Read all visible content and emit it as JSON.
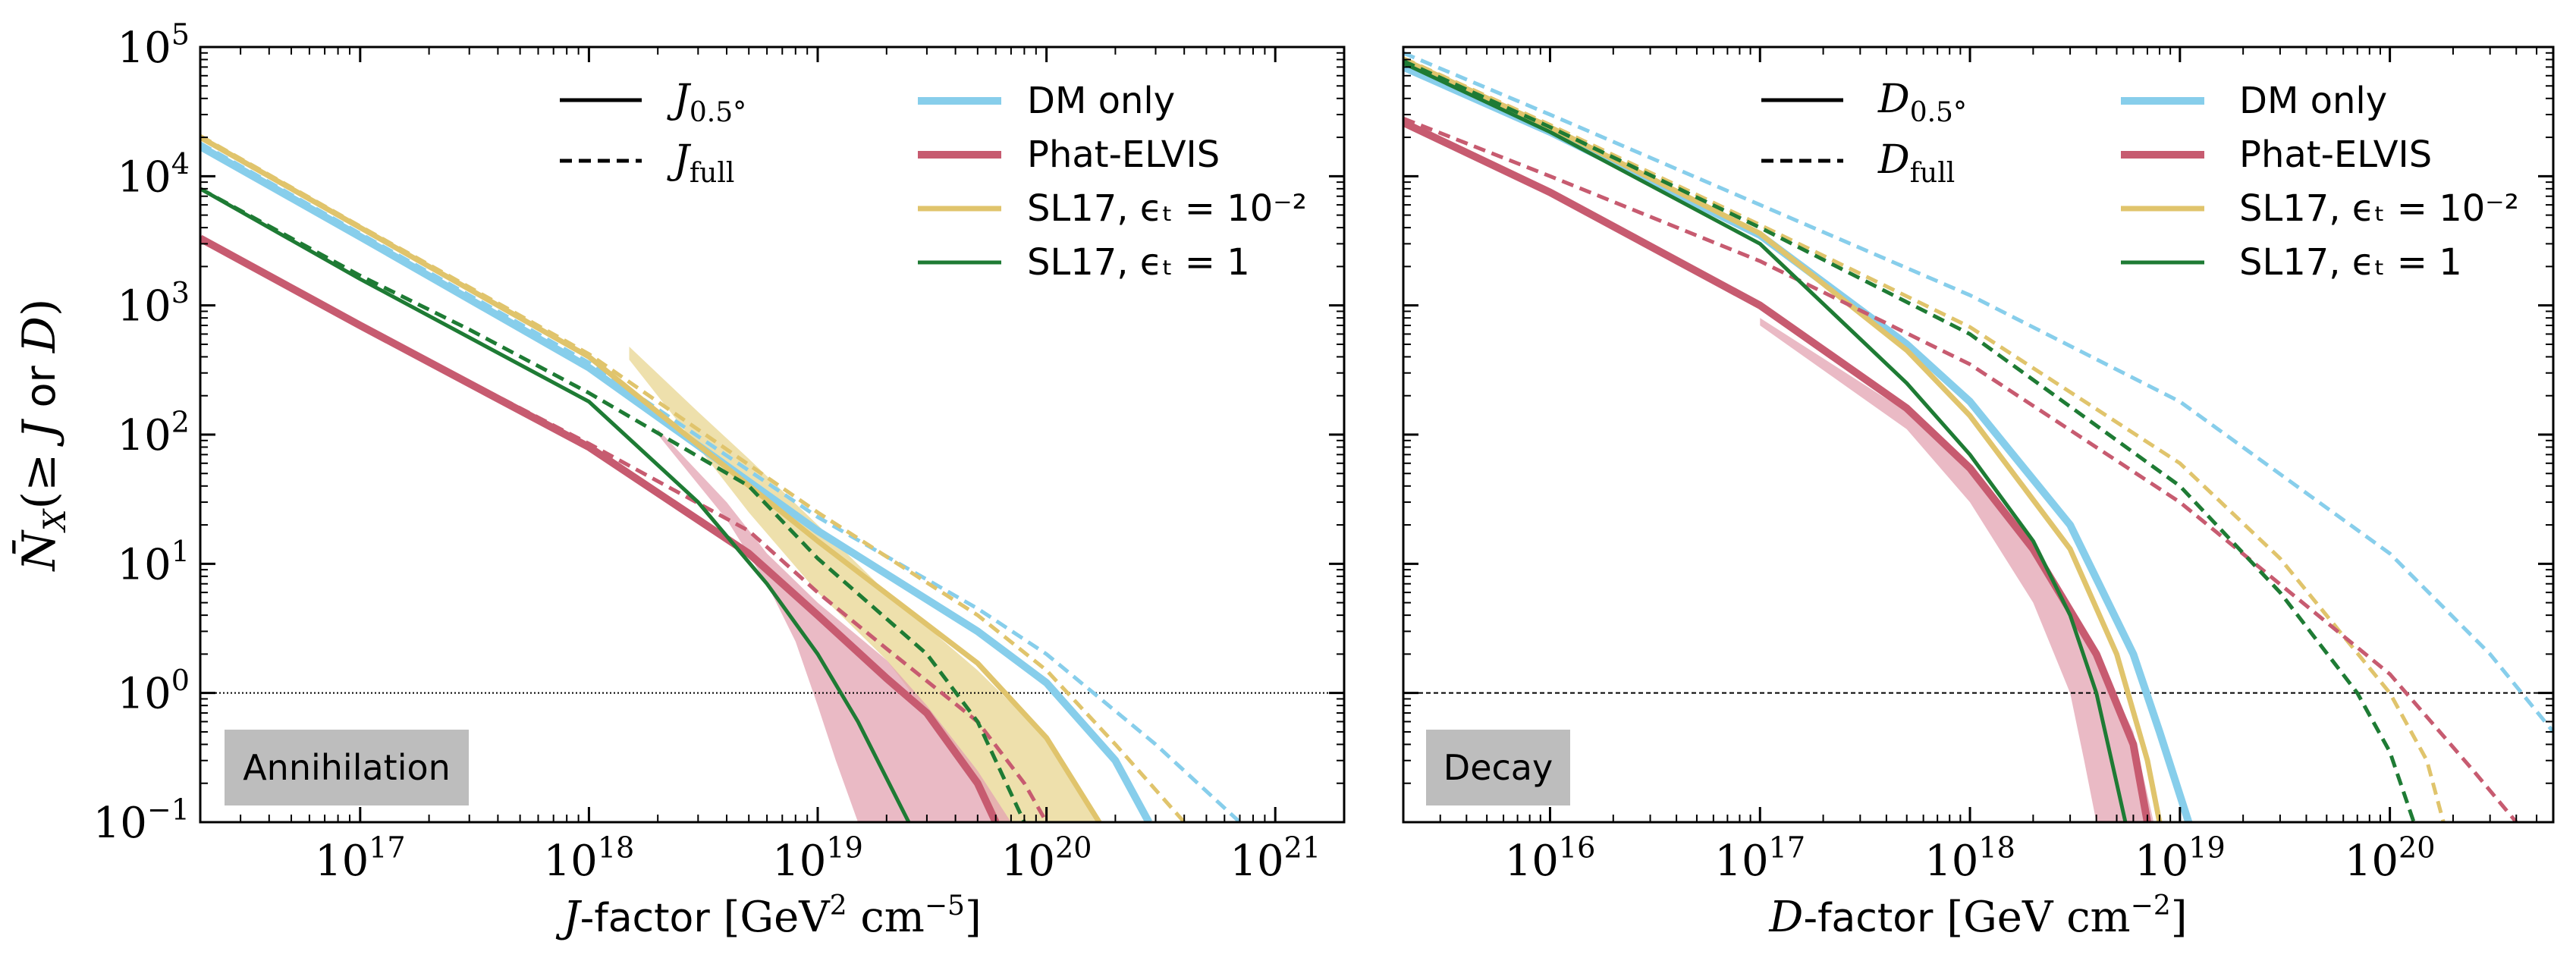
{
  "chart_data": [
    {
      "type": "line",
      "panel": "left",
      "xlabel": "J-factor [GeV² cm⁻⁵]",
      "ylabel": "N̄_X(≥ J or D)",
      "xscale": "log",
      "yscale": "log",
      "xlim": [
        2e+16,
        2e+21
      ],
      "ylim": [
        0.1,
        100000
      ],
      "x_ticklabels": [
        "10¹⁷",
        "10¹⁸",
        "10¹⁹",
        "10²⁰",
        "10²¹"
      ],
      "y_ticklabels": [
        "10⁻¹",
        "10⁰",
        "10¹",
        "10²",
        "10³",
        "10⁴",
        "10⁵"
      ],
      "reference_line_y": 1,
      "panel_label": "Annihilation",
      "legend_linestyle": [
        {
          "name": "J₀.₅°",
          "style": "solid"
        },
        {
          "name": "J_full",
          "style": "dashed"
        }
      ],
      "legend_models": [
        {
          "name": "DM only",
          "color": "#87CEEB"
        },
        {
          "name": "Phat-ELVIS",
          "color": "#C75B70"
        },
        {
          "name": "SL17, ϵₜ = 10⁻²",
          "color": "#E0C46C"
        },
        {
          "name": "SL17, ϵₜ = 1",
          "color": "#1E7B34"
        }
      ],
      "bands": [
        {
          "name": "SL17, ϵₜ = 10⁻² band",
          "color": "#E8D690",
          "upper": [
            [
              1.5e+18,
              480
            ],
            [
              3e+18,
              150
            ],
            [
              5e+18,
              65
            ],
            [
              1e+19,
              20
            ],
            [
              2e+19,
              6
            ],
            [
              5e+19,
              1.5
            ],
            [
              1e+20,
              0.45
            ],
            [
              1.5e+20,
              0.15
            ],
            [
              1.7e+20,
              0.1
            ]
          ],
          "lower": [
            [
              1.5e+18,
              380
            ],
            [
              3e+18,
              80
            ],
            [
              5e+18,
              25
            ],
            [
              1e+19,
              6
            ],
            [
              2e+19,
              1.8
            ],
            [
              3e+19,
              0.7
            ],
            [
              5e+19,
              0.2
            ],
            [
              6e+19,
              0.1
            ]
          ]
        },
        {
          "name": "Phat-ELVIS band",
          "color": "#E3A3B2",
          "upper": [
            [
              2e+18,
              110
            ],
            [
              4e+18,
              30
            ],
            [
              6e+18,
              12
            ],
            [
              1e+19,
              5
            ],
            [
              2e+19,
              1.8
            ],
            [
              3e+19,
              0.8
            ],
            [
              5e+19,
              0.25
            ],
            [
              7e+19,
              0.1
            ]
          ],
          "lower": [
            [
              2e+18,
              100
            ],
            [
              4e+18,
              22
            ],
            [
              6e+18,
              7
            ],
            [
              8e+18,
              2.5
            ],
            [
              1e+19,
              0.8
            ],
            [
              1.2e+19,
              0.3
            ],
            [
              1.5e+19,
              0.1
            ]
          ]
        }
      ],
      "series": [
        {
          "name": "DM only (J₀.₅°)",
          "color": "#87CEEB",
          "style": "solid",
          "points": [
            [
              2e+16,
              17000
            ],
            [
              1e+17,
              3400
            ],
            [
              1e+18,
              330
            ],
            [
              1e+19,
              18
            ],
            [
              5e+19,
              3
            ],
            [
              1e+20,
              1.2
            ],
            [
              2e+20,
              0.3
            ],
            [
              2.8e+20,
              0.1
            ]
          ]
        },
        {
          "name": "DM only (J_full)",
          "color": "#87CEEB",
          "style": "dashed",
          "points": [
            [
              2e+16,
              18000
            ],
            [
              1e+17,
              3600
            ],
            [
              1e+18,
              360
            ],
            [
              1e+19,
              23
            ],
            [
              5e+19,
              4.5
            ],
            [
              1e+20,
              2
            ],
            [
              3e+20,
              0.4
            ],
            [
              7e+20,
              0.1
            ]
          ]
        },
        {
          "name": "SL17, ϵₜ = 10⁻² (J₀.₅°)",
          "color": "#E0C46C",
          "style": "solid",
          "points": [
            [
              2e+16,
              20000
            ],
            [
              1e+17,
              4000
            ],
            [
              1e+18,
              400
            ],
            [
              1e+19,
              15
            ],
            [
              5e+19,
              1.7
            ],
            [
              1e+20,
              0.45
            ],
            [
              1.7e+20,
              0.1
            ]
          ]
        },
        {
          "name": "SL17, ϵₜ = 10⁻² (J_full)",
          "color": "#E0C46C",
          "style": "dashed",
          "points": [
            [
              2e+16,
              20500
            ],
            [
              1e+17,
              4100
            ],
            [
              1e+18,
              420
            ],
            [
              1e+19,
              25
            ],
            [
              5e+19,
              4
            ],
            [
              1e+20,
              1.5
            ],
            [
              2e+20,
              0.4
            ],
            [
              4e+20,
              0.1
            ]
          ]
        },
        {
          "name": "Phat-ELVIS (J₀.₅°)",
          "color": "#C75B70",
          "style": "solid",
          "points": [
            [
              2e+16,
              3300
            ],
            [
              1e+17,
              700
            ],
            [
              1e+18,
              80
            ],
            [
              5e+18,
              12
            ],
            [
              1e+19,
              4
            ],
            [
              2e+19,
              1.3
            ],
            [
              3e+19,
              0.7
            ],
            [
              5e+19,
              0.2
            ],
            [
              6e+19,
              0.1
            ]
          ]
        },
        {
          "name": "Phat-ELVIS (J_full)",
          "color": "#C75B70",
          "style": "dashed",
          "points": [
            [
              2e+16,
              3300
            ],
            [
              1e+17,
              700
            ],
            [
              1e+18,
              85
            ],
            [
              5e+18,
              18
            ],
            [
              1e+19,
              6
            ],
            [
              2e+19,
              2.2
            ],
            [
              5e+19,
              0.6
            ],
            [
              8e+19,
              0.2
            ],
            [
              1e+20,
              0.1
            ]
          ]
        },
        {
          "name": "SL17, ϵₜ = 1 (J₀.₅°)",
          "color": "#1E7B34",
          "style": "solid",
          "points": [
            [
              2e+16,
              8000
            ],
            [
              1e+17,
              1600
            ],
            [
              1e+18,
              180
            ],
            [
              3e+18,
              30
            ],
            [
              6e+18,
              7
            ],
            [
              1e+19,
              2
            ],
            [
              1.5e+19,
              0.6
            ],
            [
              2.5e+19,
              0.1
            ]
          ]
        },
        {
          "name": "SL17, ϵₜ = 1 (J_full)",
          "color": "#1E7B34",
          "style": "dashed",
          "points": [
            [
              2e+16,
              8000
            ],
            [
              1e+17,
              1700
            ],
            [
              3e+17,
              650
            ],
            [
              1e+18,
              210
            ],
            [
              5e+18,
              40
            ],
            [
              1e+19,
              11
            ],
            [
              3e+19,
              2
            ],
            [
              5e+19,
              0.6
            ],
            [
              8e+19,
              0.1
            ]
          ]
        }
      ]
    },
    {
      "type": "line",
      "panel": "right",
      "xlabel": "D-factor [GeV cm⁻²]",
      "xscale": "log",
      "yscale": "log",
      "xlim": [
        2000000000000000.0,
        6e+20
      ],
      "ylim": [
        0.1,
        100000
      ],
      "x_ticklabels": [
        "10¹⁶",
        "10¹⁷",
        "10¹⁸",
        "10¹⁹",
        "10²⁰"
      ],
      "reference_line_y": 1,
      "panel_label": "Decay",
      "legend_linestyle": [
        {
          "name": "D₀.₅°",
          "style": "solid"
        },
        {
          "name": "D_full",
          "style": "dashed"
        }
      ],
      "legend_models": [
        {
          "name": "DM only",
          "color": "#87CEEB"
        },
        {
          "name": "Phat-ELVIS",
          "color": "#C75B70"
        },
        {
          "name": "SL17, ϵₜ = 10⁻²",
          "color": "#E0C46C"
        },
        {
          "name": "SL17, ϵₜ = 1",
          "color": "#1E7B34"
        }
      ],
      "bands": [
        {
          "name": "Phat-ELVIS band",
          "color": "#E3A3B2",
          "upper": [
            [
              1e+17,
              800
            ],
            [
              5e+17,
              150
            ],
            [
              1e+18,
              50
            ],
            [
              2e+18,
              12
            ],
            [
              4e+18,
              2
            ],
            [
              6e+18,
              0.5
            ],
            [
              7.5e+18,
              0.1
            ]
          ],
          "lower": [
            [
              1e+17,
              700
            ],
            [
              5e+17,
              110
            ],
            [
              1e+18,
              30
            ],
            [
              2e+18,
              5
            ],
            [
              3e+18,
              1
            ],
            [
              3.5e+18,
              0.3
            ],
            [
              4e+18,
              0.1
            ]
          ]
        }
      ],
      "series": [
        {
          "name": "DM only (D₀.₅°)",
          "color": "#87CEEB",
          "style": "solid",
          "points": [
            [
              2000000000000000.0,
              70000
            ],
            [
              1e+16,
              22000
            ],
            [
              1e+17,
              3500
            ],
            [
              5e+17,
              500
            ],
            [
              1e+18,
              180
            ],
            [
              3e+18,
              20
            ],
            [
              6e+18,
              2
            ],
            [
              8e+18,
              0.5
            ],
            [
              1.1e+19,
              0.1
            ]
          ]
        },
        {
          "name": "DM only (D_full)",
          "color": "#87CEEB",
          "style": "dashed",
          "points": [
            [
              2000000000000000.0,
              90000
            ],
            [
              1e+16,
              30000
            ],
            [
              1e+17,
              6000
            ],
            [
              1e+18,
              1200
            ],
            [
              1e+19,
              180
            ],
            [
              1e+20,
              12
            ],
            [
              3e+20,
              2
            ],
            [
              6e+20,
              0.5
            ]
          ]
        },
        {
          "name": "SL17, ϵₜ = 10⁻² (D₀.₅°)",
          "color": "#E0C46C",
          "style": "solid",
          "points": [
            [
              2000000000000000.0,
              80000
            ],
            [
              1e+16,
              24000
            ],
            [
              1e+17,
              3600
            ],
            [
              5e+17,
              450
            ],
            [
              1e+18,
              140
            ],
            [
              3e+18,
              13
            ],
            [
              5e+18,
              2
            ],
            [
              7e+18,
              0.3
            ],
            [
              8e+18,
              0.1
            ]
          ]
        },
        {
          "name": "SL17, ϵₜ = 10⁻² (D_full)",
          "color": "#E0C46C",
          "style": "dashed",
          "points": [
            [
              2000000000000000.0,
              82000
            ],
            [
              1e+16,
              25000
            ],
            [
              1e+17,
              4200
            ],
            [
              1e+18,
              680
            ],
            [
              1e+19,
              60
            ],
            [
              3e+19,
              11
            ],
            [
              1e+20,
              1
            ],
            [
              1.5e+20,
              0.3
            ],
            [
              1.8e+20,
              0.1
            ]
          ]
        },
        {
          "name": "Phat-ELVIS (D₀.₅°)",
          "color": "#C75B70",
          "style": "solid",
          "points": [
            [
              2000000000000000.0,
              26000
            ],
            [
              1e+16,
              7500
            ],
            [
              1e+17,
              1000
            ],
            [
              5e+17,
              160
            ],
            [
              1e+18,
              55
            ],
            [
              2e+18,
              13
            ],
            [
              4e+18,
              2
            ],
            [
              6e+18,
              0.4
            ],
            [
              7e+18,
              0.1
            ]
          ]
        },
        {
          "name": "Phat-ELVIS (D_full)",
          "color": "#C75B70",
          "style": "dashed",
          "points": [
            [
              2000000000000000.0,
              28000
            ],
            [
              1e+16,
              10000
            ],
            [
              1e+17,
              2200
            ],
            [
              1e+18,
              350
            ],
            [
              1e+19,
              30
            ],
            [
              1e+20,
              1.4
            ],
            [
              2.5e+20,
              0.25
            ],
            [
              4e+20,
              0.1
            ]
          ]
        },
        {
          "name": "SL17, ϵₜ = 1 (D₀.₅°)",
          "color": "#1E7B34",
          "style": "solid",
          "points": [
            [
              2000000000000000.0,
              75000
            ],
            [
              1e+16,
              22000
            ],
            [
              1e+17,
              3000
            ],
            [
              5e+17,
              250
            ],
            [
              1e+18,
              70
            ],
            [
              2e+18,
              15
            ],
            [
              3e+18,
              4
            ],
            [
              4e+18,
              1
            ],
            [
              5e+18,
              0.2
            ],
            [
              5.5e+18,
              0.1
            ]
          ]
        },
        {
          "name": "SL17, ϵₜ = 1 (D_full)",
          "color": "#1E7B34",
          "style": "dashed",
          "points": [
            [
              2000000000000000.0,
              78000
            ],
            [
              1e+16,
              24000
            ],
            [
              1e+17,
              4000
            ],
            [
              1e+18,
              600
            ],
            [
              1e+19,
              40
            ],
            [
              3e+19,
              6
            ],
            [
              7e+19,
              1
            ],
            [
              1e+20,
              0.35
            ],
            [
              1.3e+20,
              0.1
            ]
          ]
        }
      ]
    }
  ]
}
